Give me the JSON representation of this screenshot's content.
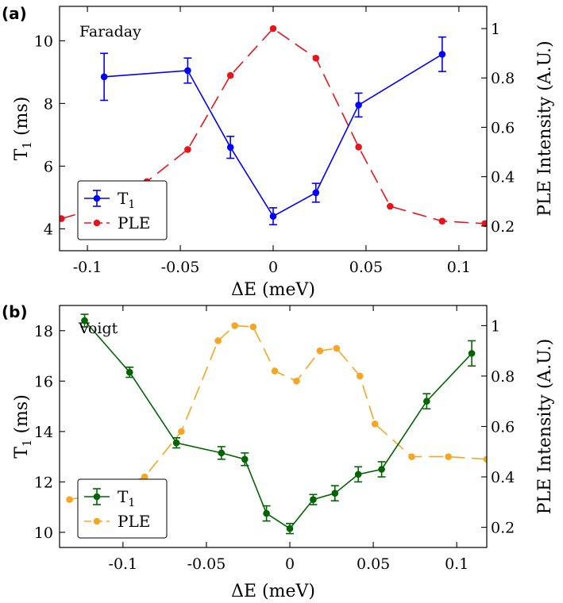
{
  "chart_data": [
    {
      "type": "line",
      "panel_label": "(a)",
      "annotation": "Faraday",
      "xlabel": "ΔE (meV)",
      "ylabel_left": "T",
      "ylabel_left_sub": "1",
      "ylabel_left_suffix": " (ms)",
      "ylabel_right": "PLE Intensity (A.U.)",
      "xlim": [
        -0.115,
        0.115
      ],
      "ylim_left": [
        3.3,
        11.1
      ],
      "ylim_right": [
        0.1,
        1.09
      ],
      "x_ticks": [
        -0.1,
        -0.05,
        0,
        0.05,
        0.1
      ],
      "x_tick_labels": [
        "-0.1",
        "-0.05",
        "0",
        "0.05",
        "0.1"
      ],
      "y_left_ticks": [
        4,
        6,
        8,
        10
      ],
      "y_left_tick_labels": [
        "4",
        "6",
        "8",
        "10"
      ],
      "y_right_ticks": [
        0.2,
        0.4,
        0.6,
        0.8,
        1.0
      ],
      "y_right_tick_labels": [
        "0.2",
        "0.4",
        "0.6",
        "0.8",
        "1"
      ],
      "legend": {
        "placement": "bottom-left",
        "entries": [
          "T",
          "PLE"
        ],
        "entry_subscripts": [
          "1",
          ""
        ]
      },
      "series": [
        {
          "name": "T1",
          "axis": "left",
          "color": "#0000ff",
          "style": "solid",
          "errorbars": true,
          "x": [
            -0.091,
            -0.046,
            -0.023,
            0.0,
            0.023,
            0.046,
            0.091
          ],
          "y": [
            8.85,
            9.05,
            6.6,
            4.4,
            5.15,
            7.95,
            9.57
          ],
          "err": [
            0.75,
            0.4,
            0.35,
            0.27,
            0.3,
            0.38,
            0.55
          ]
        },
        {
          "name": "PLE",
          "axis": "right",
          "color": "#e8141c",
          "style": "dashed",
          "errorbars": false,
          "x": [
            -0.114,
            -0.091,
            -0.068,
            -0.046,
            -0.023,
            0.0,
            0.023,
            0.046,
            0.063,
            0.091,
            0.114
          ],
          "y": [
            0.23,
            0.28,
            0.38,
            0.51,
            0.81,
            1.0,
            0.88,
            0.52,
            0.28,
            0.22,
            0.21
          ]
        }
      ]
    },
    {
      "type": "line",
      "panel_label": "(b)",
      "annotation": "Voigt",
      "xlabel": "ΔE (meV)",
      "ylabel_left": "T",
      "ylabel_left_sub": "1",
      "ylabel_left_suffix": " (ms)",
      "ylabel_right": "PLE Intensity (A.U.)",
      "xlim": [
        -0.138,
        0.118
      ],
      "ylim_left": [
        9.4,
        19.0
      ],
      "ylim_right": [
        0.12,
        1.08
      ],
      "x_ticks": [
        -0.1,
        -0.05,
        0,
        0.05,
        0.1
      ],
      "x_tick_labels": [
        "-0.1",
        "-0.05",
        "0",
        "0.05",
        "0.1"
      ],
      "y_left_ticks": [
        10,
        12,
        14,
        16,
        18
      ],
      "y_left_tick_labels": [
        "10",
        "12",
        "14",
        "16",
        "18"
      ],
      "y_right_ticks": [
        0.2,
        0.4,
        0.6,
        0.8,
        1.0
      ],
      "y_right_tick_labels": [
        "0.2",
        "0.4",
        "0.6",
        "0.8",
        "1"
      ],
      "legend": {
        "placement": "bottom-left",
        "entries": [
          "T",
          "PLE"
        ],
        "entry_subscripts": [
          "1",
          ""
        ]
      },
      "series": [
        {
          "name": "T1",
          "axis": "left",
          "color": "#006400",
          "style": "solid",
          "errorbars": true,
          "x": [
            -0.123,
            -0.096,
            -0.068,
            -0.041,
            -0.027,
            -0.014,
            0.0,
            0.014,
            0.027,
            0.041,
            0.055,
            0.082,
            0.109
          ],
          "y": [
            18.4,
            16.35,
            13.55,
            13.15,
            12.9,
            10.75,
            10.15,
            11.3,
            11.55,
            12.3,
            12.5,
            15.2,
            17.1
          ],
          "err": [
            0.25,
            0.2,
            0.2,
            0.25,
            0.25,
            0.3,
            0.2,
            0.2,
            0.3,
            0.3,
            0.3,
            0.3,
            0.5
          ]
        },
        {
          "name": "PLE",
          "axis": "right",
          "color": "#f5a623",
          "style": "dashed",
          "errorbars": false,
          "x": [
            -0.132,
            -0.109,
            -0.087,
            -0.065,
            -0.043,
            -0.033,
            -0.022,
            -0.009,
            0.004,
            0.018,
            0.028,
            0.042,
            0.051,
            0.073,
            0.095,
            0.118
          ],
          "y": [
            0.31,
            0.34,
            0.4,
            0.58,
            0.94,
            1.0,
            0.995,
            0.82,
            0.78,
            0.9,
            0.91,
            0.8,
            0.61,
            0.48,
            0.48,
            0.47
          ]
        }
      ]
    }
  ]
}
